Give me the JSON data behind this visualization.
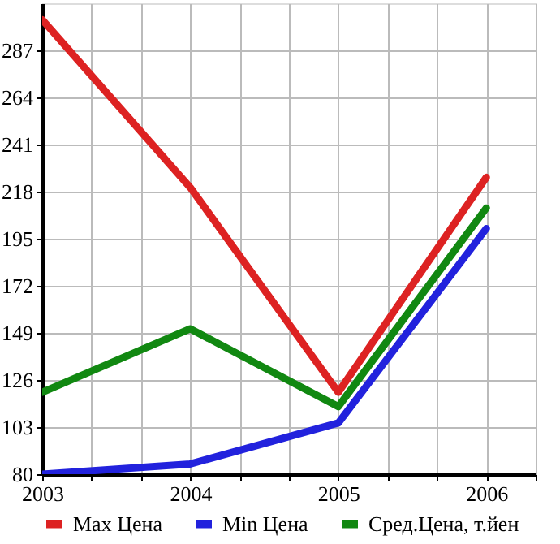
{
  "chart_data": {
    "type": "line",
    "x": [
      2003,
      2004,
      2005,
      2006
    ],
    "series": [
      {
        "name": "Max Цена",
        "color": "#dd2222",
        "values": [
          302,
          220,
          120,
          225
        ]
      },
      {
        "name": "Min Цена",
        "color": "#2222dd",
        "values": [
          80,
          85,
          105,
          200
        ]
      },
      {
        "name": "Сред.Цена, т.йен",
        "color": "#118811",
        "values": [
          120,
          151,
          113,
          210
        ]
      }
    ],
    "xlim": [
      2003,
      2006.333
    ],
    "xticks": [
      2003,
      {
        "value": 2003.333,
        "label": null
      },
      {
        "value": 2003.667,
        "label": null
      },
      2004,
      {
        "value": 2004.333,
        "label": null
      },
      {
        "value": 2004.667,
        "label": null
      },
      2005,
      {
        "value": 2005.333,
        "label": null
      },
      {
        "value": 2005.667,
        "label": null
      },
      2006,
      {
        "value": 2006.333,
        "label": null
      }
    ],
    "ylim": [
      80,
      310
    ],
    "yticks": [
      80,
      103,
      126,
      149,
      172,
      195,
      218,
      241,
      264,
      287
    ],
    "grid": true,
    "legend": "bottom",
    "marker": "none",
    "line_style": "solid"
  }
}
